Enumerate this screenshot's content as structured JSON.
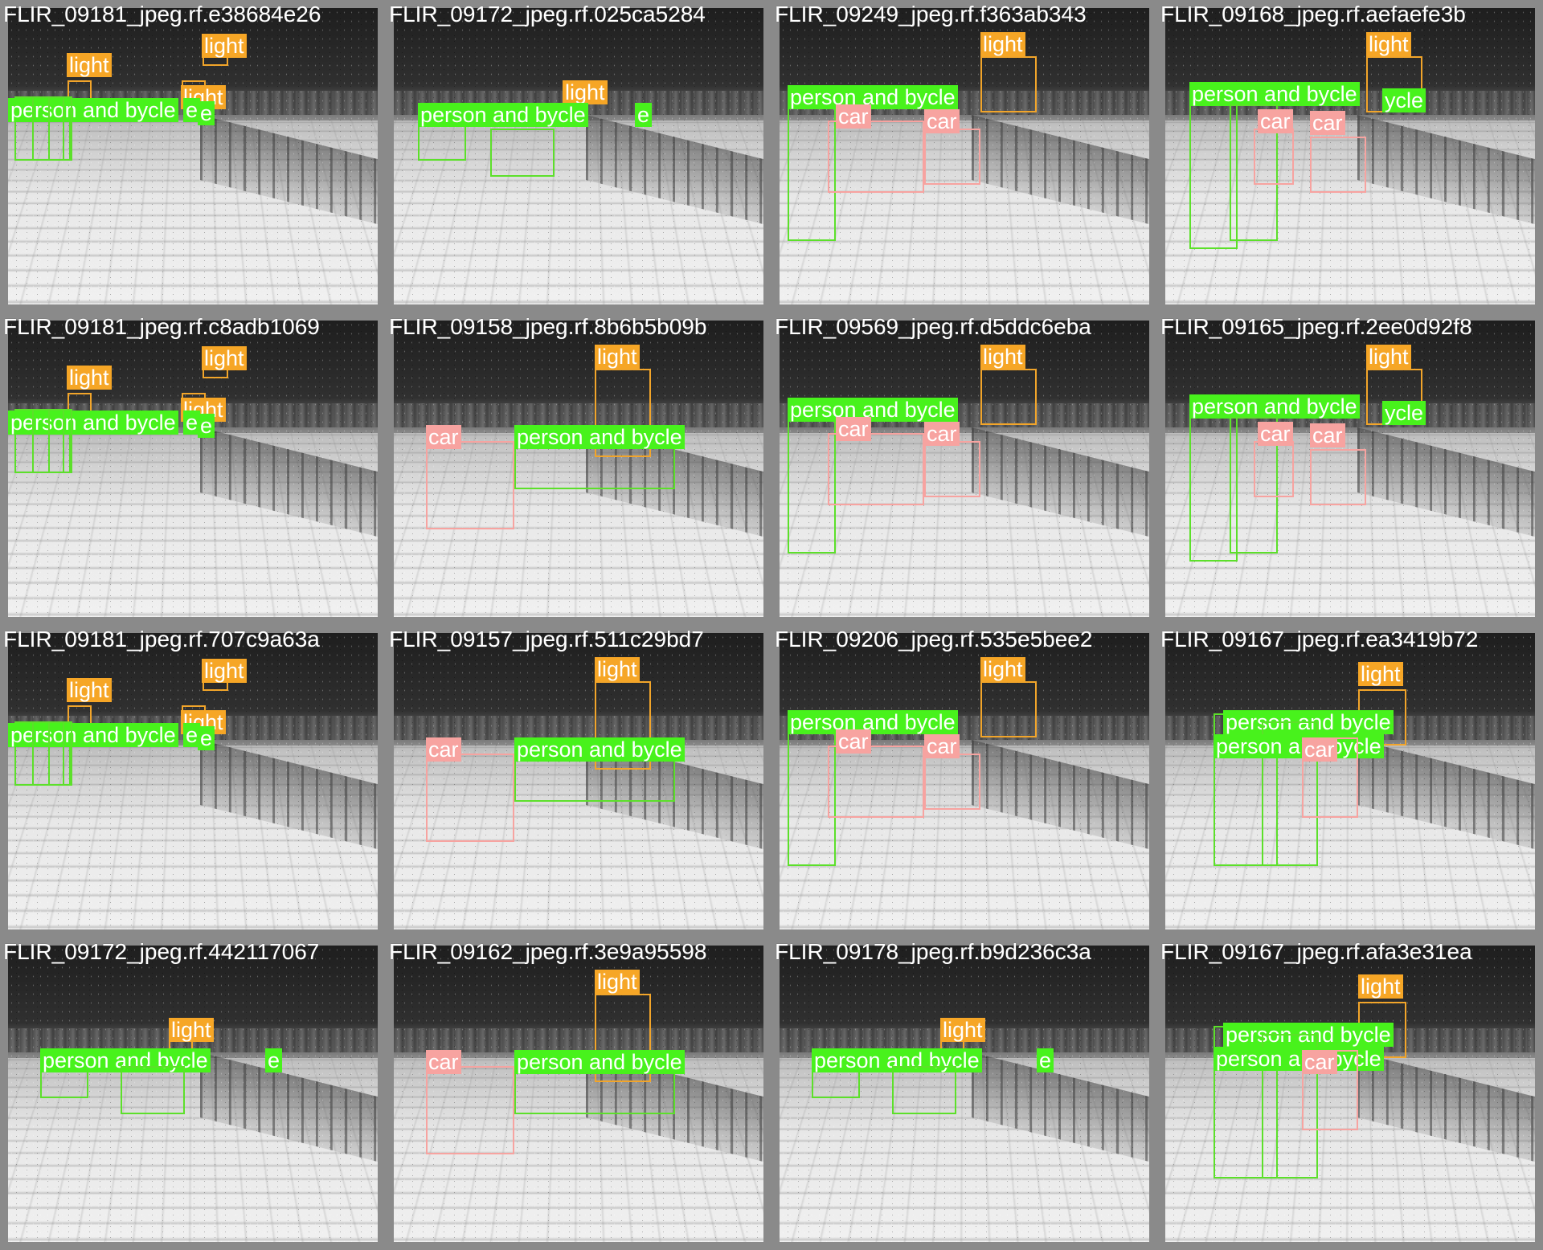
{
  "tiles": [
    {
      "filename": "FLIR_09181_jpeg.rf.e38684e26",
      "variant": "pier",
      "boxes": [
        {
          "cls": "light",
          "label": "light"
        },
        {
          "cls": "light",
          "label": "light"
        },
        {
          "cls": "light",
          "label": "light"
        },
        {
          "cls": "person",
          "label": "person and bycle"
        },
        {
          "cls": "person",
          "label": "e"
        },
        {
          "cls": "person",
          "label": "e"
        }
      ]
    },
    {
      "filename": "FLIR_09172_jpeg.rf.025ca5284",
      "variant": "cars",
      "boxes": [
        {
          "cls": "light",
          "label": "light"
        },
        {
          "cls": "person",
          "label": "person and bycle"
        },
        {
          "cls": "person",
          "label": "e"
        }
      ]
    },
    {
      "filename": "FLIR_09249_jpeg.rf.f363ab343",
      "variant": "street",
      "boxes": [
        {
          "cls": "light",
          "label": "light"
        },
        {
          "cls": "person",
          "label": "person and bycle"
        },
        {
          "cls": "car",
          "label": "car"
        },
        {
          "cls": "car",
          "label": "car"
        }
      ]
    },
    {
      "filename": "FLIR_09168_jpeg.rf.aefaefe3b",
      "variant": "walkers",
      "boxes": [
        {
          "cls": "light",
          "label": "light"
        },
        {
          "cls": "person",
          "label": "person and bycle"
        },
        {
          "cls": "person",
          "label": "ycle"
        },
        {
          "cls": "car",
          "label": "car"
        },
        {
          "cls": "car",
          "label": "car"
        }
      ]
    },
    {
      "filename": "FLIR_09181_jpeg.rf.c8adb1069",
      "variant": "pier",
      "boxes": [
        {
          "cls": "light",
          "label": "light"
        },
        {
          "cls": "light",
          "label": "light"
        },
        {
          "cls": "light",
          "label": "light"
        },
        {
          "cls": "person",
          "label": "person and bycle"
        },
        {
          "cls": "person",
          "label": "e"
        },
        {
          "cls": "person",
          "label": "e"
        }
      ]
    },
    {
      "filename": "FLIR_09158_jpeg.rf.8b6b5b09b",
      "variant": "bigcar",
      "boxes": [
        {
          "cls": "light",
          "label": "light"
        },
        {
          "cls": "car",
          "label": "car"
        },
        {
          "cls": "person",
          "label": "person and bycle"
        }
      ]
    },
    {
      "filename": "FLIR_09569_jpeg.rf.d5ddc6eba",
      "variant": "street",
      "boxes": [
        {
          "cls": "light",
          "label": "light"
        },
        {
          "cls": "person",
          "label": "person and bycle"
        },
        {
          "cls": "car",
          "label": "car"
        },
        {
          "cls": "car",
          "label": "car"
        }
      ]
    },
    {
      "filename": "FLIR_09165_jpeg.rf.2ee0d92f8",
      "variant": "walkers",
      "boxes": [
        {
          "cls": "light",
          "label": "light"
        },
        {
          "cls": "person",
          "label": "person and bycle"
        },
        {
          "cls": "person",
          "label": "ycle"
        },
        {
          "cls": "car",
          "label": "car"
        },
        {
          "cls": "car",
          "label": "car"
        }
      ]
    },
    {
      "filename": "FLIR_09181_jpeg.rf.707c9a63a",
      "variant": "pier",
      "boxes": [
        {
          "cls": "light",
          "label": "light"
        },
        {
          "cls": "light",
          "label": "light"
        },
        {
          "cls": "light",
          "label": "light"
        },
        {
          "cls": "person",
          "label": "person and bycle"
        },
        {
          "cls": "person",
          "label": "e"
        },
        {
          "cls": "person",
          "label": "e"
        }
      ]
    },
    {
      "filename": "FLIR_09157_jpeg.rf.511c29bd7",
      "variant": "bigcar",
      "boxes": [
        {
          "cls": "light",
          "label": "light"
        },
        {
          "cls": "car",
          "label": "car"
        },
        {
          "cls": "person",
          "label": "person and bycle"
        }
      ]
    },
    {
      "filename": "FLIR_09206_jpeg.rf.535e5bee2",
      "variant": "street",
      "boxes": [
        {
          "cls": "light",
          "label": "light"
        },
        {
          "cls": "person",
          "label": "person and bycle"
        },
        {
          "cls": "car",
          "label": "car"
        },
        {
          "cls": "car",
          "label": "car"
        }
      ]
    },
    {
      "filename": "FLIR_09167_jpeg.rf.ea3419b72",
      "variant": "crowd",
      "boxes": [
        {
          "cls": "light",
          "label": "light"
        },
        {
          "cls": "person",
          "label": "person and bycle"
        },
        {
          "cls": "person",
          "label": "person and bycle"
        },
        {
          "cls": "car",
          "label": "car"
        }
      ]
    },
    {
      "filename": "FLIR_09172_jpeg.rf.442117067",
      "variant": "cars2",
      "boxes": [
        {
          "cls": "light",
          "label": "light"
        },
        {
          "cls": "person",
          "label": "person and bycle"
        },
        {
          "cls": "person",
          "label": "e"
        }
      ]
    },
    {
      "filename": "FLIR_09162_jpeg.rf.3e9a95598",
      "variant": "bigcar",
      "boxes": [
        {
          "cls": "light",
          "label": "light"
        },
        {
          "cls": "car",
          "label": "car"
        },
        {
          "cls": "person",
          "label": "person and bycle"
        }
      ]
    },
    {
      "filename": "FLIR_09178_jpeg.rf.b9d236c3a",
      "variant": "cars2",
      "boxes": [
        {
          "cls": "light",
          "label": "light"
        },
        {
          "cls": "person",
          "label": "person and bycle"
        },
        {
          "cls": "person",
          "label": "e"
        }
      ]
    },
    {
      "filename": "FLIR_09167_jpeg.rf.afa3e31ea",
      "variant": "crowd",
      "boxes": [
        {
          "cls": "light",
          "label": "light"
        },
        {
          "cls": "person",
          "label": "person and bycle"
        },
        {
          "cls": "person",
          "label": "person and bycle"
        },
        {
          "cls": "car",
          "label": "car"
        }
      ]
    }
  ]
}
